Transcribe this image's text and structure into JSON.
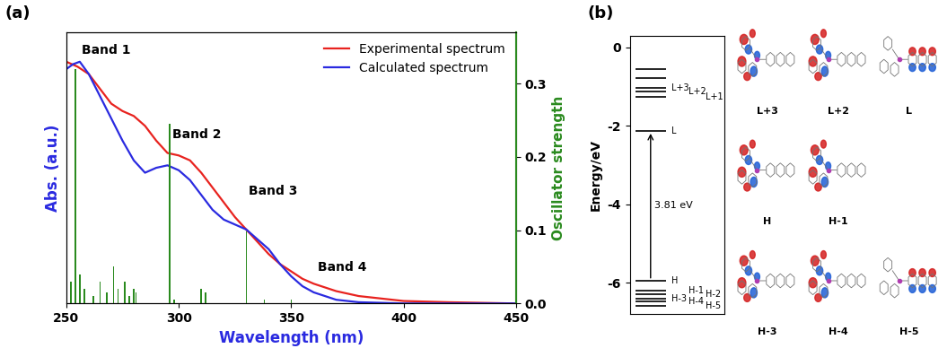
{
  "chart_data": {
    "type": "line",
    "panel_label": "(a)",
    "x_label": "Wavelength (nm)",
    "y_label": "Abs. (a.u.)",
    "y2_label": "Oscillator strength",
    "xlim": [
      250,
      450
    ],
    "xticks": [
      250,
      300,
      350,
      400,
      450
    ],
    "ylim": [
      0,
      1.1
    ],
    "yticks": [],
    "y2lim": [
      0,
      0.37
    ],
    "y2ticks": [
      0.0,
      0.1,
      0.2,
      0.3
    ],
    "legend": "upper right",
    "annotations": [
      "Band 1",
      "Band 2",
      "Band 3",
      "Band 4"
    ],
    "series": [
      {
        "name": "Experimental spectrum",
        "color": "#e8231f",
        "x": [
          250,
          255,
          260,
          265,
          270,
          275,
          280,
          285,
          290,
          295,
          300,
          305,
          310,
          315,
          320,
          325,
          330,
          335,
          340,
          345,
          350,
          355,
          360,
          370,
          380,
          390,
          400,
          420,
          450
        ],
        "values": [
          0.98,
          0.96,
          0.93,
          0.87,
          0.81,
          0.78,
          0.76,
          0.72,
          0.66,
          0.61,
          0.6,
          0.58,
          0.53,
          0.47,
          0.41,
          0.35,
          0.3,
          0.25,
          0.2,
          0.16,
          0.13,
          0.1,
          0.08,
          0.05,
          0.03,
          0.02,
          0.01,
          0.005,
          0.0
        ]
      },
      {
        "name": "Calculated spectrum",
        "color": "#2a2ae0",
        "x": [
          250,
          253,
          256,
          260,
          265,
          270,
          275,
          280,
          285,
          290,
          295,
          300,
          305,
          310,
          315,
          320,
          325,
          330,
          335,
          340,
          345,
          350,
          355,
          360,
          370,
          380,
          400,
          450
        ],
        "values": [
          0.95,
          0.97,
          0.98,
          0.93,
          0.84,
          0.75,
          0.66,
          0.58,
          0.53,
          0.55,
          0.56,
          0.54,
          0.5,
          0.44,
          0.38,
          0.34,
          0.32,
          0.3,
          0.26,
          0.22,
          0.16,
          0.11,
          0.07,
          0.045,
          0.015,
          0.005,
          0.0,
          0.0
        ]
      },
      {
        "type": "bar",
        "axis": "y2",
        "color": "#2a8a1e",
        "x": [
          250,
          252,
          254,
          256,
          258,
          262,
          265,
          268,
          271,
          273,
          276,
          278,
          280,
          281,
          296,
          298,
          310,
          312,
          330,
          338,
          350
        ],
        "values": [
          0.06,
          0.03,
          0.32,
          0.04,
          0.02,
          0.01,
          0.03,
          0.015,
          0.05,
          0.02,
          0.03,
          0.01,
          0.02,
          0.015,
          0.245,
          0.005,
          0.02,
          0.015,
          0.098,
          0.005,
          0.005
        ]
      }
    ]
  },
  "diagram": {
    "panel_label": "(b)",
    "y_label": "Energy/eV",
    "ylim": [
      -6.8,
      0.3
    ],
    "yticks": [
      -6,
      -4,
      -2,
      0
    ],
    "levels": [
      {
        "name": null,
        "energy": -0.55
      },
      {
        "name": null,
        "energy": -0.78
      },
      {
        "name": "L+3",
        "energy": -1.02
      },
      {
        "name": "L+2",
        "energy": -1.13
      },
      {
        "name": "L+1",
        "energy": -1.25
      },
      {
        "name": "L",
        "energy": -2.13
      },
      {
        "name": "H",
        "energy": -5.94
      },
      {
        "name": "H-1",
        "energy": -6.2
      },
      {
        "name": "H-2",
        "energy": -6.28
      },
      {
        "name": "H-3",
        "energy": -6.4
      },
      {
        "name": "H-4",
        "energy": -6.48
      },
      {
        "name": "H-5",
        "energy": -6.6
      }
    ],
    "gap": {
      "text": "3.81 eV",
      "from": "H",
      "to": "L"
    },
    "orbital_images": [
      "L+3",
      "L+2",
      "L",
      "H",
      "H-1",
      "H-3",
      "H-4",
      "H-5"
    ]
  }
}
